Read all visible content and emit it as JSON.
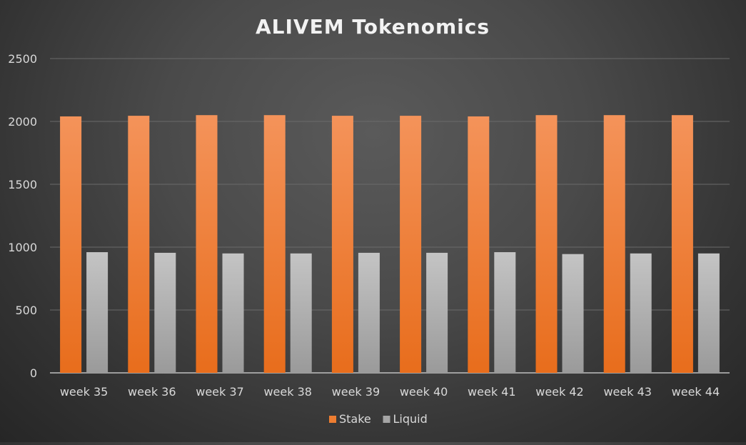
{
  "chart_data": {
    "type": "bar",
    "title": "ALIVEM Tokenomics",
    "categories": [
      "week 35",
      "week 36",
      "week 37",
      "week 38",
      "week 39",
      "week 40",
      "week 41",
      "week 42",
      "week 43",
      "week 44"
    ],
    "series": [
      {
        "name": "Stake",
        "color": "#ed7d31",
        "values": [
          2040,
          2045,
          2050,
          2050,
          2045,
          2045,
          2040,
          2050,
          2050,
          2050
        ]
      },
      {
        "name": "Liquid",
        "color": "#a5a5a5",
        "values": [
          960,
          955,
          950,
          950,
          955,
          955,
          960,
          945,
          950,
          950
        ]
      }
    ],
    "ylim": [
      0,
      2500
    ],
    "yticks": [
      0,
      500,
      1000,
      1500,
      2000,
      2500
    ],
    "grid": true,
    "legend_position": "bottom"
  }
}
